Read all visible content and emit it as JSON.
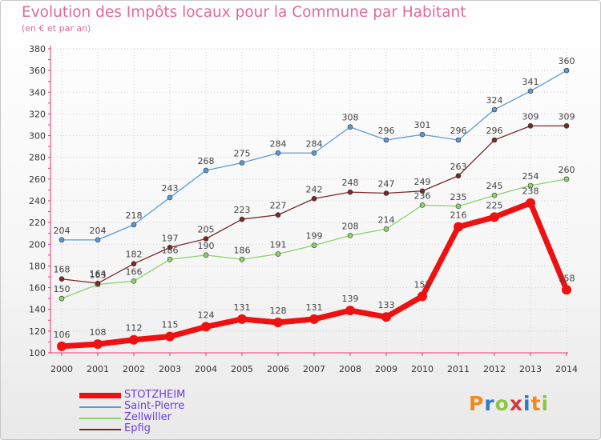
{
  "header": {
    "title": "Evolution des Impôts locaux pour la Commune par Habitant",
    "subtitle": "(en € et par an)"
  },
  "logo": {
    "text": "Proxiti",
    "colors": [
      "#f08a1c",
      "#2f79c9",
      "#8fc641",
      "#d23a3a",
      "#2f79c9",
      "#f08a1c",
      "#8fc641"
    ]
  },
  "chart_data": {
    "type": "line",
    "x": [
      2000,
      2001,
      2002,
      2003,
      2004,
      2005,
      2006,
      2007,
      2008,
      2009,
      2010,
      2011,
      2012,
      2013,
      2014
    ],
    "ylim": [
      100,
      380
    ],
    "yticks": [
      100,
      120,
      140,
      160,
      180,
      200,
      220,
      240,
      260,
      280,
      300,
      320,
      340,
      360,
      380
    ],
    "grid": true,
    "legend_position": "bottom-left",
    "series": [
      {
        "name": "Saint-Pierre",
        "color": "#5b9bd5",
        "values": [
          204,
          204,
          218,
          243,
          268,
          275,
          284,
          284,
          308,
          296,
          301,
          296,
          324,
          341,
          360
        ]
      },
      {
        "name": "Zellwiller",
        "color": "#8fd16b",
        "values": [
          150,
          163,
          166,
          186,
          190,
          186,
          191,
          199,
          208,
          214,
          236,
          235,
          245,
          254,
          260
        ]
      },
      {
        "name": "Epfig",
        "color": "#7a2828",
        "values": [
          168,
          164,
          182,
          197,
          205,
          223,
          227,
          242,
          248,
          247,
          249,
          263,
          296,
          309,
          309
        ]
      },
      {
        "name": "STOTZHEIM",
        "color": "#ee1111",
        "values": [
          106,
          108,
          112,
          115,
          124,
          131,
          128,
          131,
          139,
          133,
          152,
          216,
          225,
          238,
          158
        ]
      }
    ]
  }
}
